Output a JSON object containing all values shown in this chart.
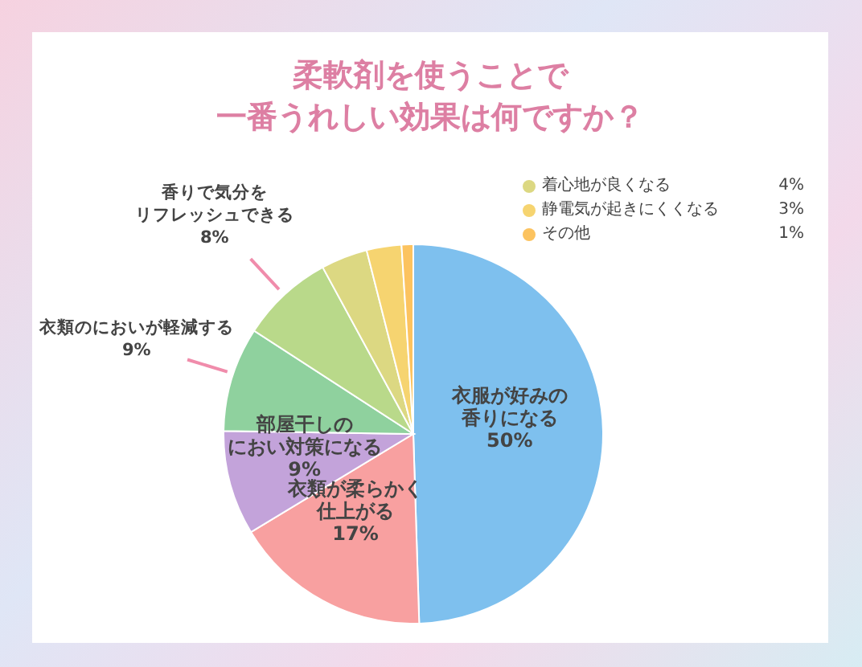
{
  "chart_data": {
    "type": "pie",
    "title": "柔軟剤を使うことで一番うれしい効果は何ですか？",
    "categories": [
      "衣服が好みの香りになる",
      "衣類が柔らかく仕上がる",
      "部屋干しのにおい対策になる",
      "衣類のにおいが軽減する",
      "香りで気分をリフレッシュできる",
      "着心地が良くなる",
      "静電気が起きにくくなる",
      "その他"
    ],
    "values": [
      50,
      17,
      9,
      9,
      8,
      4,
      3,
      1
    ],
    "value_labels": [
      "50%",
      "17%",
      "9%",
      "9%",
      "8%",
      "4%",
      "3%",
      "1%"
    ],
    "colors": [
      "#7ec0ee",
      "#f8a0a0",
      "#c3a3da",
      "#8fd19e",
      "#b9d98a",
      "#dcd882",
      "#f6d470",
      "#fcc35f"
    ],
    "legend": "top right"
  }
}
